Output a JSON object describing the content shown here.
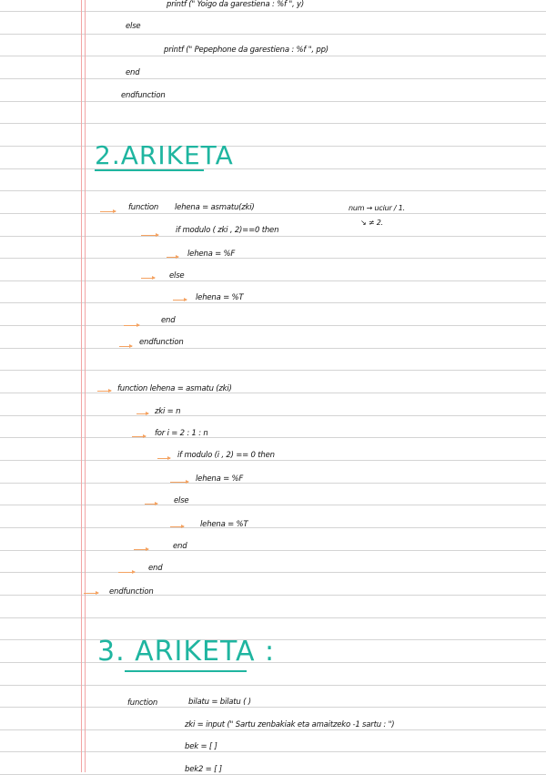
{
  "section1_tail": [
    "printf (\" Yoigo da garestiena : %f \", y)",
    "else",
    "printf (\" Pepephone da garestiena : %f \", pp)",
    "end",
    "endfunction"
  ],
  "section2": {
    "heading": "2.ARIKETA",
    "note": [
      "num → uciur / 1.",
      "↘ ≠ 2."
    ],
    "block1": [
      "function",
      "lehena = asmatu(zki)",
      "if  modulo ( zki , 2)==0  then",
      "lehena = %F",
      "else",
      "lehena = %T",
      "end",
      "endfunction"
    ],
    "block2": [
      "function  lehena = asmatu (zki)",
      "zki = n",
      "for  i = 2 : 1 : n",
      "if  modulo (i , 2) == 0   then",
      "lehena = %F",
      "else",
      "lehena = %T",
      "end",
      "end",
      "endfunction"
    ]
  },
  "section3": {
    "heading": "3. ARIKETA :",
    "lines": [
      "function",
      "bilatu = bilatu (       )",
      "zki = input (\" Sartu zenbakiak eta amaitzeko -1 sartu :  \")",
      "bek  =  [  ]",
      "bek2  =  [  ]"
    ]
  },
  "colors": {
    "heading": "#1fb5a0",
    "arrow": "#f4a261",
    "margin": "#f2a5a5",
    "rule": "#d4d4d4"
  }
}
